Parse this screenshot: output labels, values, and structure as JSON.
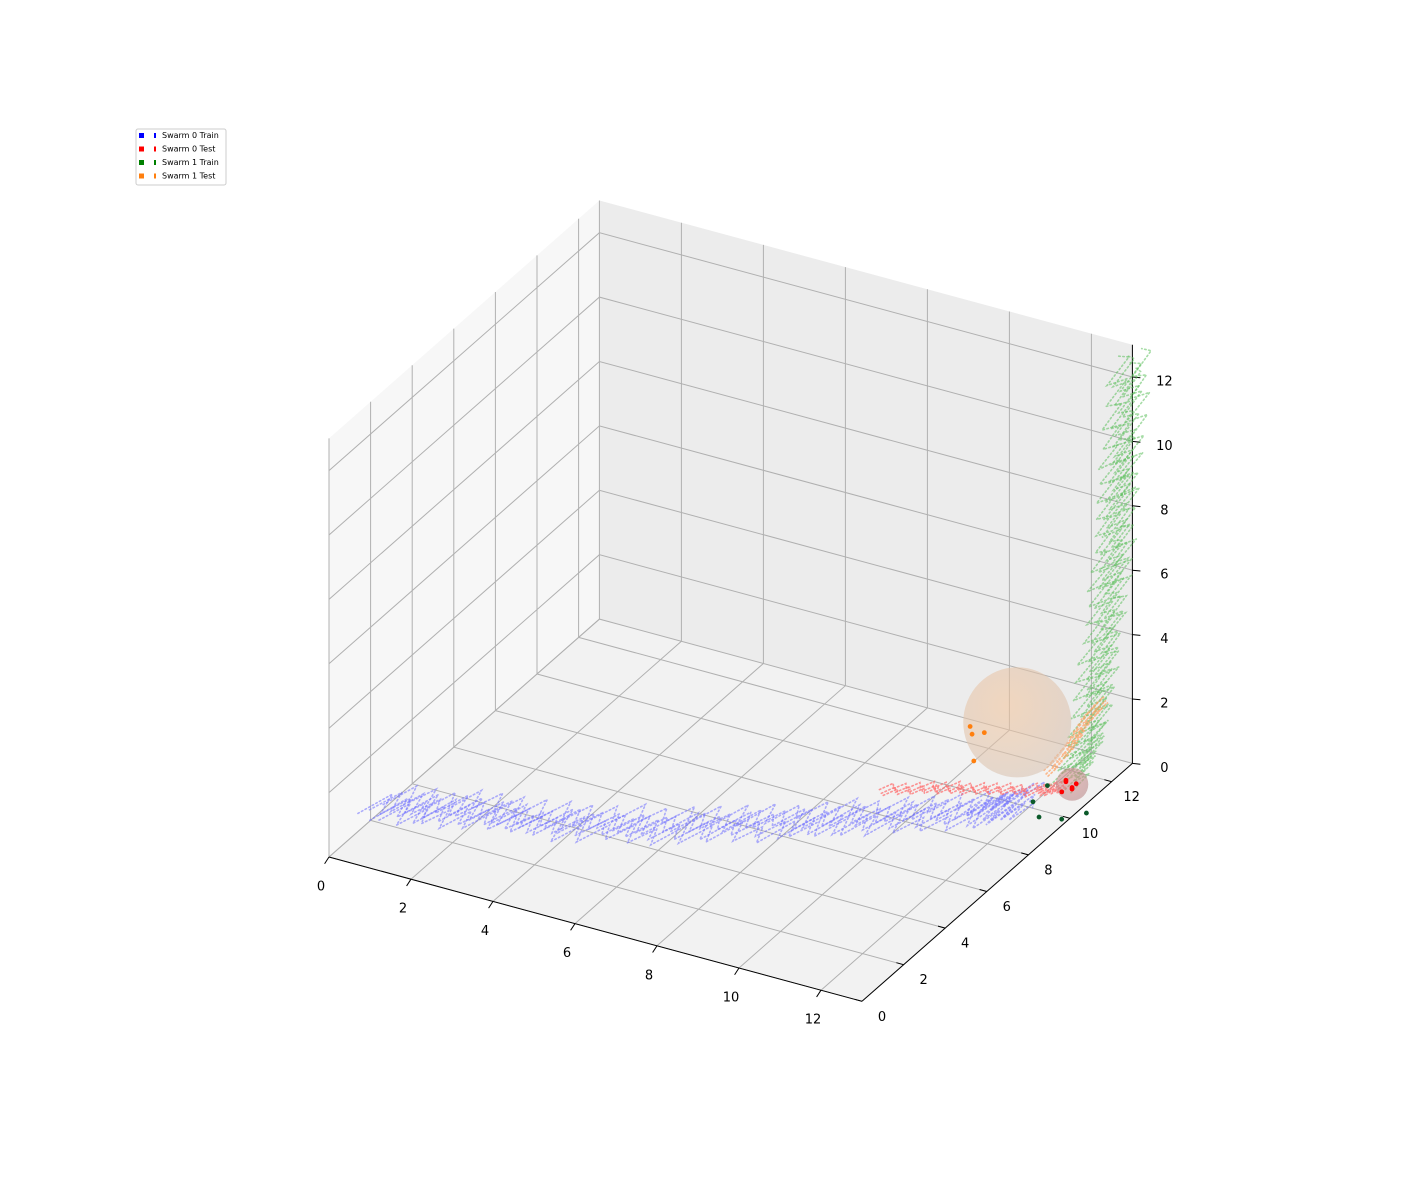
{
  "chart_data": {
    "type": "scatter",
    "projection": "3d",
    "grid": true,
    "legend_position": "top-left",
    "axes": {
      "x": {
        "ticks": [
          "0",
          "2",
          "4",
          "6",
          "8",
          "10",
          "12"
        ],
        "range": [
          0,
          13
        ]
      },
      "y": {
        "ticks": [
          "0",
          "2",
          "4",
          "6",
          "8",
          "10",
          "12"
        ],
        "range": [
          0,
          13
        ]
      },
      "z": {
        "ticks": [
          "0",
          "2",
          "4",
          "6",
          "8",
          "10",
          "12"
        ],
        "range": [
          0,
          13
        ]
      }
    },
    "series": [
      {
        "name": "Swarm 0 Train",
        "color": "#0000ff",
        "style": "dotted-trajectories",
        "description_points": [
          [
            0.2,
            2.2,
            0.3
          ],
          [
            2,
            2.8,
            0.4
          ],
          [
            4,
            3.2,
            0.5
          ],
          [
            6,
            4,
            0.6
          ],
          [
            8,
            5.2,
            0.7
          ],
          [
            10,
            6.4,
            0.9
          ],
          [
            12,
            7.6,
            1.1
          ],
          [
            12.8,
            8.4,
            1.3
          ]
        ]
      },
      {
        "name": "Swarm 0 Test",
        "color": "#ff0000",
        "style": "points",
        "points": [
          [
            12.9,
            9.8,
            0.9
          ],
          [
            12.8,
            10.2,
            1.0
          ],
          [
            13.0,
            10.1,
            0.9
          ],
          [
            12.9,
            10.0,
            1.1
          ],
          [
            13.0,
            10.3,
            0.9
          ],
          [
            13.1,
            9.9,
            1.0
          ]
        ]
      },
      {
        "name": "Swarm 1 Train",
        "color": "#008000",
        "style": "dotted-trajectories",
        "description_points": [
          [
            13.0,
            10.2,
            1.0
          ],
          [
            13.0,
            11,
            2.0
          ],
          [
            13.0,
            11.5,
            4.0
          ],
          [
            13.0,
            12,
            6.0
          ],
          [
            13.0,
            12.3,
            8.0
          ],
          [
            13.0,
            12.6,
            10.0
          ],
          [
            13.0,
            12.9,
            12.5
          ]
        ]
      },
      {
        "name": "Swarm 1 Test",
        "color": "#ff7f0e",
        "style": "points",
        "points": [
          [
            9.6,
            11.9,
            0.6
          ],
          [
            9.8,
            11.6,
            0.6
          ],
          [
            10.2,
            11.4,
            0.9
          ],
          [
            10.4,
            10.5,
            0.6
          ]
        ]
      }
    ],
    "spheres": [
      {
        "center": [
          10.8,
          11.8,
          1.2
        ],
        "radius": 1.5,
        "color": "#f4c49a"
      },
      {
        "center": [
          13.0,
          10.1,
          1.0
        ],
        "radius": 0.45,
        "color": "#d98a8a"
      }
    ],
    "legend": {
      "items": [
        {
          "label": "Swarm 0 Train",
          "color": "#0000ff"
        },
        {
          "label": "Swarm 0 Test",
          "color": "#ff0000"
        },
        {
          "label": "Swarm 1 Train",
          "color": "#008000"
        },
        {
          "label": "Swarm 1 Test",
          "color": "#ff7f0e"
        }
      ]
    }
  }
}
